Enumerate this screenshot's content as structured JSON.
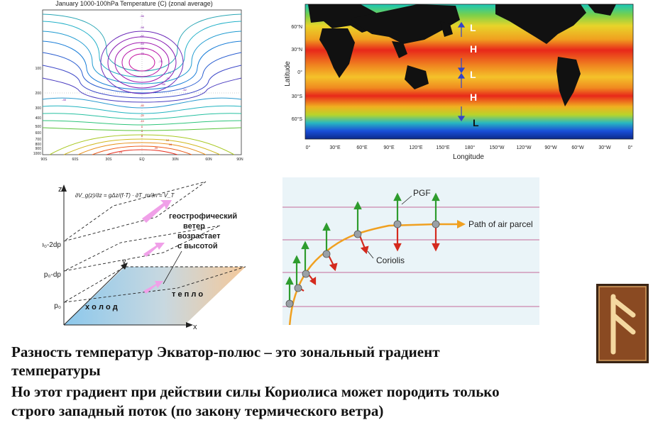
{
  "temp_panel": {
    "title": "January 1000-100hPa Temperature (C) (zonal average)",
    "y_ticks": [
      "100",
      "200",
      "300",
      "400",
      "500",
      "600",
      "700",
      "800",
      "900",
      "1000"
    ],
    "x_ticks": [
      "90S",
      "60S",
      "30S",
      "EQ",
      "30N",
      "60N",
      "90N"
    ],
    "contour_labels": [
      "-56",
      "-58",
      "-60",
      "-64",
      "-68",
      "-72",
      "-76",
      "-74",
      "-70",
      "-66",
      "-62",
      "-48",
      "-40",
      "-20",
      "-10",
      "0",
      "4",
      "8",
      "12",
      "16",
      "20",
      "24"
    ]
  },
  "sst_panel": {
    "y_axis_label": "Latitude",
    "y_ticks": [
      "60°N",
      "30°N",
      "0°",
      "30°S",
      "60°S"
    ],
    "x_axis_label": "Longitude",
    "x_ticks": [
      "0°",
      "30°E",
      "60°E",
      "90°E",
      "120°E",
      "150°E",
      "180°",
      "150°W",
      "120°W",
      "90°W",
      "60°W",
      "30°W",
      "0°"
    ],
    "pressure_labels": [
      "L",
      "H",
      "L",
      "H",
      "L"
    ]
  },
  "geo_panel": {
    "equation": "∂V_g(z)/∂z = gΔz/(f·T) · ∂T_m/∂n = V_T",
    "axis_z": "z",
    "axis_y": "y",
    "axis_x": "x",
    "level_labels": [
      "p₀-2dp",
      "p₀-dp",
      "p₀"
    ],
    "annotation": [
      "геострофический",
      "ветер",
      "возрастает",
      "с высотой"
    ],
    "cold_label": "х о л о д",
    "warm_label": "т е п л о"
  },
  "path_panel": {
    "pgf_label": "PGF",
    "coriolis_label": "Coriolis",
    "path_label": "Path of air parcel"
  },
  "captions": [
    "Разность температур Экватор-полюс – это зональный градиент",
    "температуры",
    "Но этот градиент при действии силы Кориолиса может породить только",
    "строго западный поток (по закону термического ветра)"
  ],
  "colors": {
    "pgf_arrow": "#2e9c2e",
    "coriolis_arrow": "#d42a1e",
    "path": "#f0a020",
    "isobar": "#c46a9a",
    "sst_warm": "#e8281a",
    "sst_cold": "#1a4ed8"
  }
}
